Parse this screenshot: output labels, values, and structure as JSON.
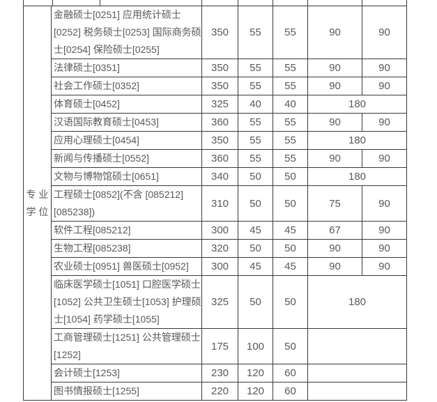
{
  "page": {
    "background_color": "#ffffff",
    "border_color": "#383838",
    "text_color": "#595959"
  },
  "table": {
    "degree_label": {
      "line1": "专 业",
      "line2": "学 位"
    },
    "rows": [
      {
        "name": "金融硕士[0251] 应用统计硕士[0252] 税务硕士[0253] 国际商务硕士[0254] 保险硕士[0255]",
        "values": [
          "350",
          "55",
          "55",
          "90",
          "90"
        ],
        "merge_last": false
      },
      {
        "name": "法律硕士[0351]",
        "values": [
          "350",
          "55",
          "55",
          "90",
          "90"
        ],
        "merge_last": false
      },
      {
        "name": "社会工作硕士[0352]",
        "values": [
          "350",
          "55",
          "55",
          "90",
          "90"
        ],
        "merge_last": false
      },
      {
        "name": "体育硕士[0452]",
        "values": [
          "325",
          "40",
          "40",
          "180"
        ],
        "merge_last": true
      },
      {
        "name": "汉语国际教育硕士[0453]",
        "values": [
          "360",
          "55",
          "55",
          "90",
          "90"
        ],
        "merge_last": false
      },
      {
        "name": "应用心理硕士[0454]",
        "values": [
          "350",
          "55",
          "55",
          "180"
        ],
        "merge_last": true
      },
      {
        "name": "新闻与传播硕士[0552]",
        "values": [
          "360",
          "55",
          "55",
          "90",
          "90"
        ],
        "merge_last": false
      },
      {
        "name": "文物与博物馆硕士[0651]",
        "values": [
          "340",
          "50",
          "50",
          "180"
        ],
        "merge_last": true
      },
      {
        "name": "工程硕士[0852](不含 [085212] [085238])",
        "values": [
          "310",
          "50",
          "50",
          "75",
          "90"
        ],
        "merge_last": false
      },
      {
        "name": "软件工程[085212]",
        "values": [
          "300",
          "45",
          "45",
          "67",
          "90"
        ],
        "merge_last": false
      },
      {
        "name": "生物工程[085238]",
        "values": [
          "320",
          "50",
          "50",
          "90",
          "90"
        ],
        "merge_last": false
      },
      {
        "name": "农业硕士[0951] 兽医硕士[0952]",
        "values": [
          "300",
          "45",
          "45",
          "90",
          "90"
        ],
        "merge_last": false
      },
      {
        "name": "临床医学硕士[1051] 口腔医学硕士[1052] 公共卫生硕士[1053] 护理硕士[1054] 药学硕士[1055]",
        "values": [
          "325",
          "50",
          "50",
          "180"
        ],
        "merge_last": true
      },
      {
        "name": "工商管理硕士[1251] 公共管理硕士[1252]",
        "values": [
          "175",
          "100",
          "50",
          ""
        ],
        "merge_last": true
      },
      {
        "name": "会计硕士[1253]",
        "values": [
          "230",
          "120",
          "60",
          ""
        ],
        "merge_last": true
      },
      {
        "name": "图书情报硕士[1255]",
        "values": [
          "220",
          "120",
          "60",
          ""
        ],
        "merge_last": true
      }
    ]
  }
}
